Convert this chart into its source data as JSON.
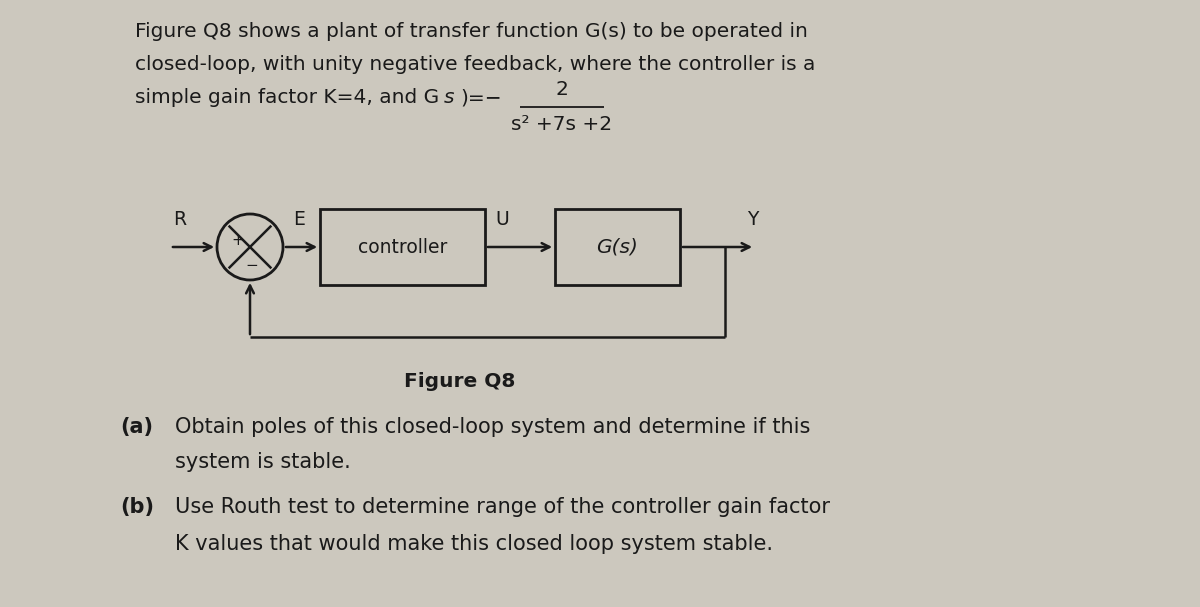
{
  "bg_color": "#ccc8be",
  "text_color": "#1a1a1a",
  "line_color": "#1a1a1a",
  "fig_width": 12.0,
  "fig_height": 6.07,
  "font_size_body": 14.5,
  "font_size_diag": 13.5,
  "font_size_label": 14.5,
  "font_size_parts": 15,
  "title_line1": "Figure Q8 shows a plant of transfer function G(s) to be operated in",
  "title_line2": "closed-loop, with unity negative feedback, where the controller is a",
  "part_a_label": "(a)",
  "part_a_line1": "Obtain poles of this closed-loop system and determine if this",
  "part_a_line2": "system is stable.",
  "part_b_label": "(b)",
  "part_b_line1": "Use Routh test to determine range of the controller gain factor",
  "part_b_line2": "K values that would make this closed loop system stable.",
  "figure_label": "Figure Q8",
  "tf_num": "2",
  "tf_den": "s² +7s +2"
}
